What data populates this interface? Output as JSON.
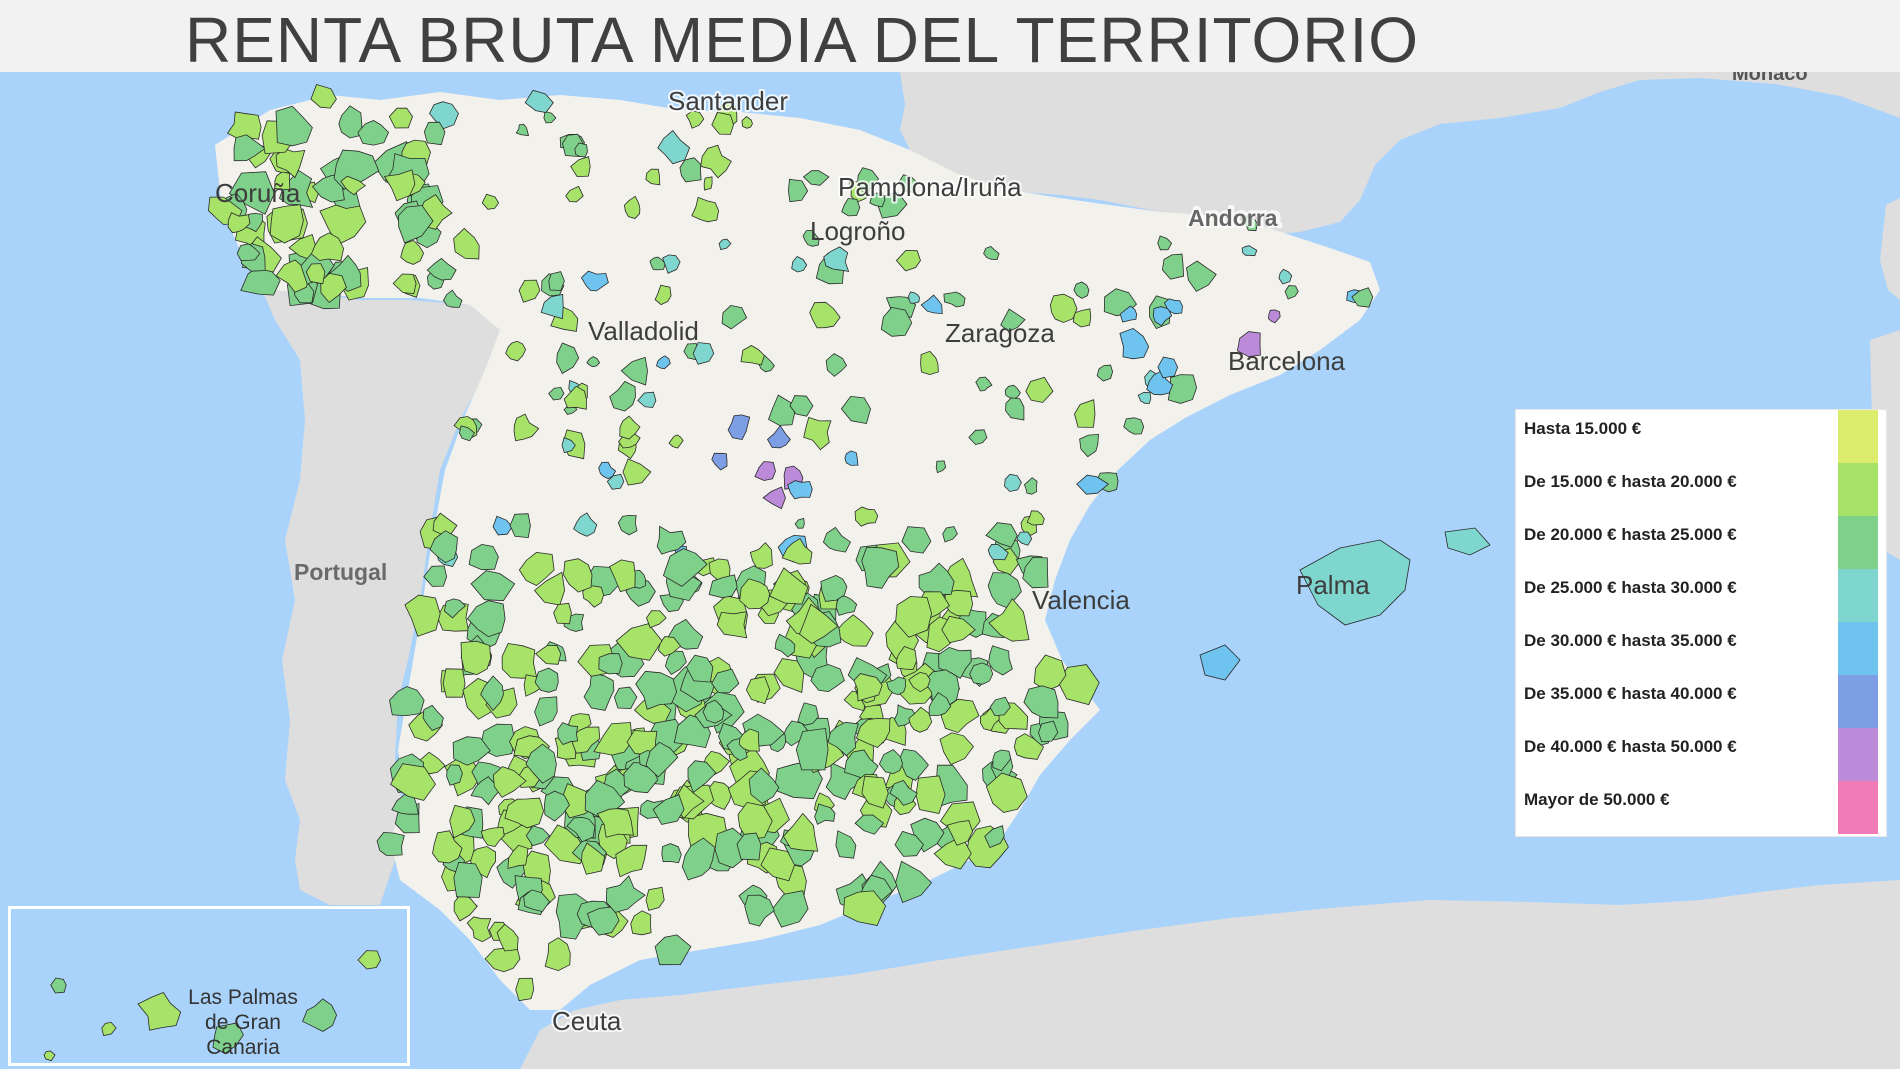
{
  "header": {
    "title": "RENTA BRUTA MEDIA DEL TERRITORIO"
  },
  "map": {
    "cities": [
      {
        "key": "santander",
        "label": "Santander"
      },
      {
        "key": "pamplona",
        "label": "Pamplona/Iruña"
      },
      {
        "key": "logrono",
        "label": "Logroño"
      },
      {
        "key": "andorra",
        "label": "Andorra"
      },
      {
        "key": "valladolid",
        "label": "Valladolid"
      },
      {
        "key": "zaragoza",
        "label": "Zaragoza"
      },
      {
        "key": "barcelona",
        "label": "Barcelona"
      },
      {
        "key": "coruna",
        "label": "Coruña"
      },
      {
        "key": "valencia",
        "label": "Valencia"
      },
      {
        "key": "palma",
        "label": "Palma"
      },
      {
        "key": "ceuta",
        "label": "Ceuta"
      },
      {
        "key": "monaco",
        "label": "Monaco"
      }
    ],
    "countries": [
      {
        "key": "portugal",
        "label": "Portugal"
      }
    ],
    "inset": {
      "label": "Las Palmas\nde Gran\nCanaria"
    },
    "colors": {
      "sea": "#a9d3fb",
      "land_other": "#dedede",
      "land_spain": "#f3f1ec",
      "outline": "#2a2a2a"
    }
  },
  "legend": {
    "items": [
      {
        "label": "Hasta 15.000 €",
        "color": "#dcec6c"
      },
      {
        "label": "De 15.000 € hasta 20.000 €",
        "color": "#a7e269"
      },
      {
        "label": "De 20.000 € hasta 25.000 €",
        "color": "#7fd08a"
      },
      {
        "label": "De 25.000 € hasta 30.000 €",
        "color": "#7fd6cf"
      },
      {
        "label": "De 30.000 € hasta 35.000 €",
        "color": "#6ec4ee"
      },
      {
        "label": "De 35.000 € hasta 40.000 €",
        "color": "#7d9ee5"
      },
      {
        "label": "De 40.000 € hasta 50.000 €",
        "color": "#bb8ad9"
      },
      {
        "label": "Mayor de 50.000 €",
        "color": "#f07bb7"
      }
    ]
  }
}
